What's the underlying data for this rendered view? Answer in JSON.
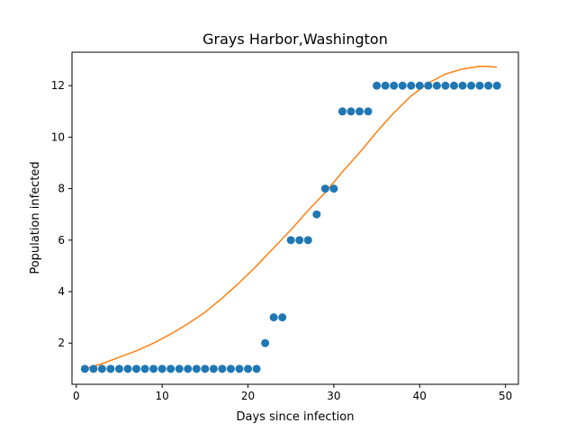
{
  "chart_data": {
    "type": "scatter",
    "title": "Grays Harbor,Washington",
    "xlabel": "Days since infection",
    "ylabel": "Population infected",
    "xlim": [
      -0.5,
      51.5
    ],
    "ylim": [
      0.4,
      13.3
    ],
    "xticks": [
      0,
      10,
      20,
      30,
      40,
      50
    ],
    "yticks": [
      2,
      4,
      6,
      8,
      10,
      12
    ],
    "grid": false,
    "colors": {
      "points": "#1f77b4",
      "fit": "#ff7f0e"
    },
    "series": [
      {
        "kind": "scatter",
        "x": [
          1,
          2,
          3,
          4,
          5,
          6,
          7,
          8,
          9,
          10,
          11,
          12,
          13,
          14,
          15,
          16,
          17,
          18,
          19,
          20,
          21,
          22,
          23,
          24,
          25,
          26,
          27,
          28,
          29,
          30,
          31,
          32,
          33,
          34,
          35,
          36,
          37,
          38,
          39,
          40,
          41,
          42,
          43,
          44,
          45,
          46,
          47,
          48,
          49
        ],
        "y": [
          1,
          1,
          1,
          1,
          1,
          1,
          1,
          1,
          1,
          1,
          1,
          1,
          1,
          1,
          1,
          1,
          1,
          1,
          1,
          1,
          1,
          2,
          3,
          3,
          6,
          6,
          6,
          7,
          8,
          8,
          11,
          11,
          11,
          11,
          12,
          12,
          12,
          12,
          12,
          12,
          12,
          12,
          12,
          12,
          12,
          12,
          12,
          12,
          12
        ]
      },
      {
        "kind": "line",
        "x": [
          1,
          3,
          5,
          7,
          9,
          11,
          13,
          15,
          17,
          19,
          21,
          23,
          25,
          27,
          29,
          31,
          33,
          35,
          37,
          39,
          41,
          43,
          45,
          47,
          48,
          49
        ],
        "y": [
          1.0,
          1.2,
          1.45,
          1.7,
          2.0,
          2.35,
          2.75,
          3.2,
          3.75,
          4.35,
          5.0,
          5.7,
          6.4,
          7.15,
          7.85,
          8.65,
          9.4,
          10.2,
          10.95,
          11.6,
          12.1,
          12.45,
          12.65,
          12.75,
          12.75,
          12.72
        ]
      }
    ]
  }
}
